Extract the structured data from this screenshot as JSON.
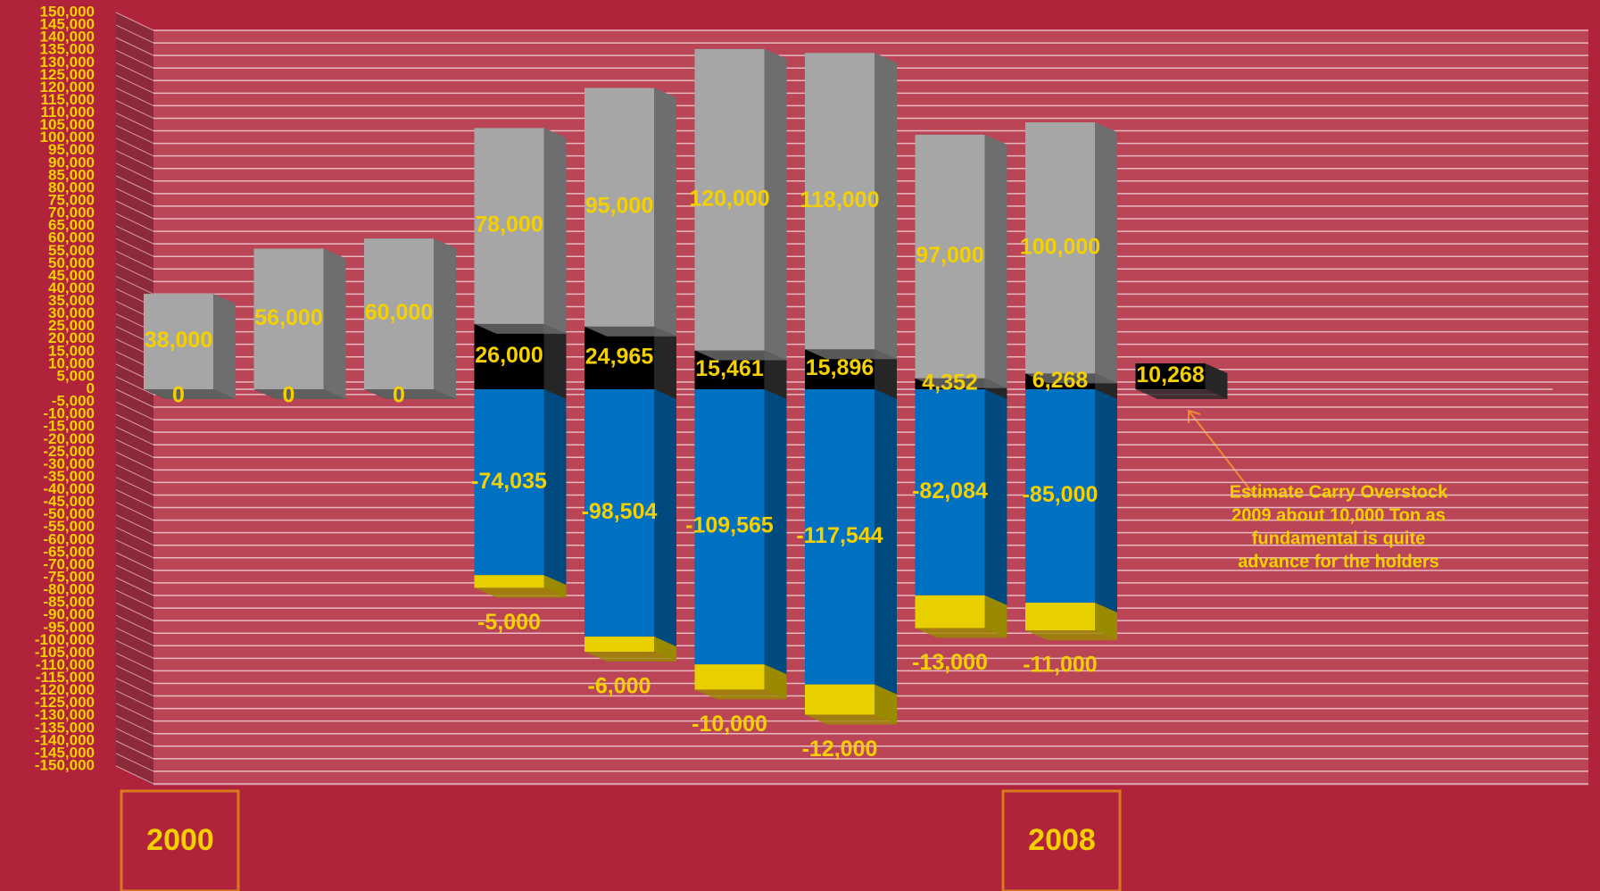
{
  "chart_data": {
    "type": "stacked_bar_3d",
    "categories": [
      "2000",
      null,
      null,
      null,
      null,
      null,
      null,
      null,
      "2008",
      null
    ],
    "series": [
      {
        "color": "#000000",
        "side": "#262626",
        "values": [
          0,
          0,
          0,
          26000,
          24965,
          15461,
          15896,
          4352,
          6268,
          10268
        ],
        "value_labels": [
          "0",
          "0",
          "0",
          "26,000",
          "24,965",
          "15,461",
          "15,896",
          "4,352",
          "6,268",
          "10,268"
        ]
      },
      {
        "color": "#a6a6a6",
        "side": "#6e6e6e",
        "values": [
          38000,
          56000,
          60000,
          78000,
          95000,
          120000,
          118000,
          97000,
          100000,
          null
        ],
        "value_labels": [
          "38,000",
          "56,000",
          "60,000",
          "78,000",
          "95,000",
          "120,000",
          "118,000",
          "97,000",
          "100,000",
          null
        ]
      },
      {
        "color": "#0070c0",
        "side": "#004a80",
        "values": [
          null,
          null,
          null,
          -74035,
          -98504,
          -109565,
          -117544,
          -82084,
          -85000,
          null
        ],
        "value_labels": [
          null,
          null,
          null,
          "-74,035",
          "-98,504",
          "-109,565",
          "-117,544",
          "-82,084",
          "-85,000",
          null
        ]
      },
      {
        "color": "#e8d000",
        "side": "#9a8a00",
        "values": [
          null,
          null,
          null,
          -5000,
          -6000,
          -10000,
          -12000,
          -13000,
          -11000,
          null
        ],
        "value_labels": [
          null,
          null,
          null,
          "-5,000",
          "-6,000",
          "-10,000",
          "-12,000",
          "-13,000",
          "-11,000",
          null
        ]
      }
    ],
    "ylim": [
      -150000,
      150000
    ],
    "yticks": [
      {
        "value": -150000,
        "label": "-150,000"
      },
      {
        "value": -145000,
        "label": "-145,000"
      },
      {
        "value": -140000,
        "label": "-140,000"
      },
      {
        "value": -135000,
        "label": "-135,000"
      },
      {
        "value": -130000,
        "label": "-130,000"
      },
      {
        "value": -125000,
        "label": "-125,000"
      },
      {
        "value": -120000,
        "label": "-120,000"
      },
      {
        "value": -115000,
        "label": "-115,000"
      },
      {
        "value": -110000,
        "label": "-110,000"
      },
      {
        "value": -105000,
        "label": "-105,000"
      },
      {
        "value": -100000,
        "label": "-100,000"
      },
      {
        "value": -95000,
        "label": "-95,000"
      },
      {
        "value": -90000,
        "label": "-90,000"
      },
      {
        "value": -85000,
        "label": "-85,000"
      },
      {
        "value": -80000,
        "label": "-80,000"
      },
      {
        "value": -75000,
        "label": "-75,000"
      },
      {
        "value": -70000,
        "label": "-70,000"
      },
      {
        "value": -65000,
        "label": "-65,000"
      },
      {
        "value": -60000,
        "label": "-60,000"
      },
      {
        "value": -55000,
        "label": "-55,000"
      },
      {
        "value": -50000,
        "label": "-50,000"
      },
      {
        "value": -45000,
        "label": "-45,000"
      },
      {
        "value": -40000,
        "label": "-40,000"
      },
      {
        "value": -35000,
        "label": "-35,000"
      },
      {
        "value": -30000,
        "label": "-30,000"
      },
      {
        "value": -25000,
        "label": "-25,000"
      },
      {
        "value": -20000,
        "label": "-20,000"
      },
      {
        "value": -15000,
        "label": "-15,000"
      },
      {
        "value": -10000,
        "label": "-10,000"
      },
      {
        "value": -5000,
        "label": "-5,000"
      },
      0,
      {
        "value": 5000,
        "label": "5,000"
      },
      {
        "value": 10000,
        "label": "10,000"
      },
      {
        "value": 15000,
        "label": "15,000"
      },
      {
        "value": 20000,
        "label": "20,000"
      },
      {
        "value": 25000,
        "label": "25,000"
      },
      {
        "value": 30000,
        "label": "30,000"
      },
      {
        "value": 35000,
        "label": "35,000"
      },
      {
        "value": 40000,
        "label": "40,000"
      },
      {
        "value": 45000,
        "label": "45,000"
      },
      {
        "value": 50000,
        "label": "50,000"
      },
      {
        "value": 55000,
        "label": "55,000"
      },
      {
        "value": 60000,
        "label": "60,000"
      },
      {
        "value": 65000,
        "label": "65,000"
      },
      {
        "value": 70000,
        "label": "70,000"
      },
      {
        "value": 75000,
        "label": "75,000"
      },
      {
        "value": 80000,
        "label": "80,000"
      },
      {
        "value": 85000,
        "label": "85,000"
      },
      {
        "value": 90000,
        "label": "90,000"
      },
      {
        "value": 95000,
        "label": "95,000"
      },
      {
        "value": 100000,
        "label": "100,000"
      },
      {
        "value": 105000,
        "label": "105,000"
      },
      {
        "value": 110000,
        "label": "110,000"
      },
      {
        "value": 115000,
        "label": "115,000"
      },
      {
        "value": 120000,
        "label": "120,000"
      },
      {
        "value": 125000,
        "label": "125,000"
      },
      {
        "value": 130000,
        "label": "130,000"
      },
      {
        "value": 135000,
        "label": "135,000"
      },
      {
        "value": 140000,
        "label": "140,000"
      },
      {
        "value": 145000,
        "label": "145,000"
      },
      {
        "value": 150000,
        "label": "150,000"
      }
    ],
    "grid": true,
    "annotation": [
      "Estimate Carry Overstock",
      "2009 about 10,000 Ton as",
      "fundamental is quite",
      "advance for the holders"
    ]
  }
}
